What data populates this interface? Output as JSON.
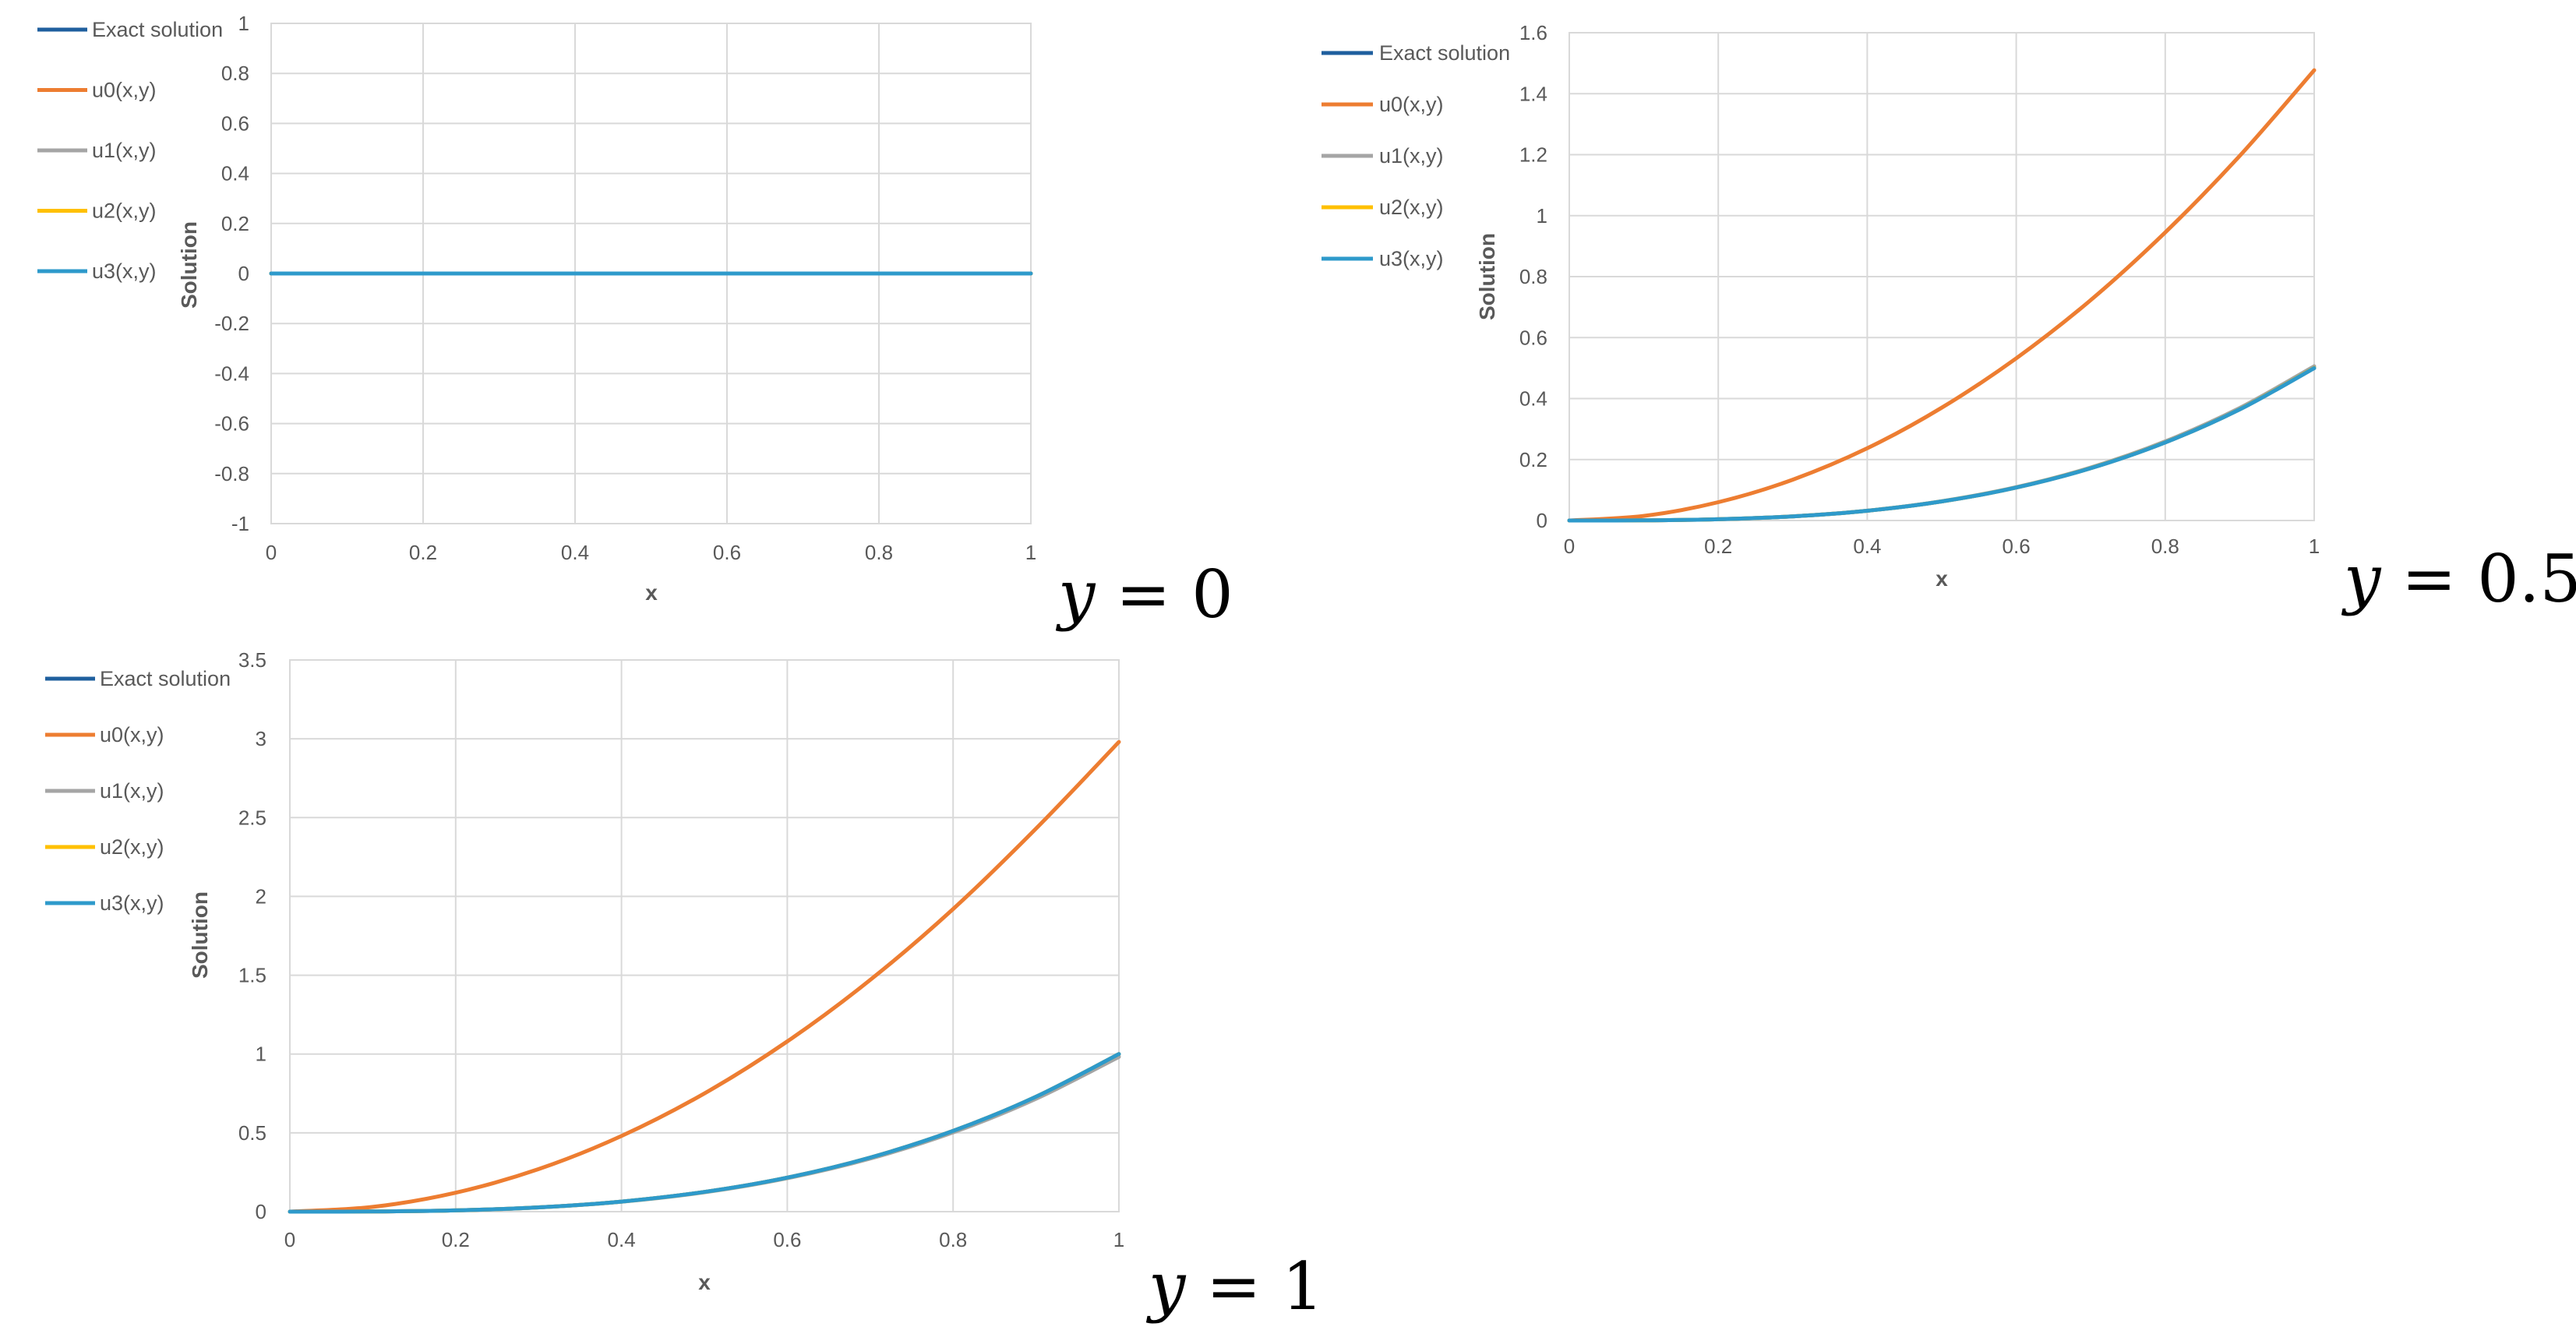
{
  "colors": {
    "exact": "#1F5F9E",
    "u0": "#ED7D31",
    "u1": "#A5A5A5",
    "u2": "#FFC000",
    "u3": "#2E9ACB",
    "grid": "#D9D9D9",
    "axis_text": "#595959"
  },
  "chart_data": [
    {
      "type": "line",
      "panel_label": {
        "var": "y",
        "rest": " = 0"
      },
      "xlabel": "x",
      "ylabel": "Solution",
      "xlim": [
        0,
        1
      ],
      "ylim": [
        -1,
        1
      ],
      "x_ticks": [
        0,
        0.2,
        0.4,
        0.6,
        0.8,
        1
      ],
      "x_tick_labels": [
        "0",
        "0.2",
        "0.4",
        "0.6",
        "0.8",
        "1"
      ],
      "y_ticks": [
        -1,
        -0.8,
        -0.6,
        -0.4,
        -0.2,
        0,
        0.2,
        0.4,
        0.6,
        0.8,
        1
      ],
      "y_tick_labels": [
        "-1",
        "-0.8",
        "-0.6",
        "-0.4",
        "-0.2",
        "0",
        "0.2",
        "0.4",
        "0.6",
        "0.8",
        "1"
      ],
      "grid": true,
      "legend": "left",
      "x": [
        0,
        0.1,
        0.2,
        0.3,
        0.4,
        0.5,
        0.6,
        0.7,
        0.8,
        0.9,
        1
      ],
      "series": [
        {
          "name": "Exact solution",
          "color_key": "exact",
          "values": [
            0,
            0,
            0,
            0,
            0,
            0,
            0,
            0,
            0,
            0,
            0
          ]
        },
        {
          "name": "u0(x,y)",
          "color_key": "u0",
          "values": [
            0,
            0,
            0,
            0,
            0,
            0,
            0,
            0,
            0,
            0,
            0
          ]
        },
        {
          "name": "u1(x,y)",
          "color_key": "u1",
          "values": [
            0,
            0,
            0,
            0,
            0,
            0,
            0,
            0,
            0,
            0,
            0
          ]
        },
        {
          "name": "u2(x,y)",
          "color_key": "u2",
          "values": [
            0,
            0,
            0,
            0,
            0,
            0,
            0,
            0,
            0,
            0,
            0
          ]
        },
        {
          "name": "u3(x,y)",
          "color_key": "u3",
          "values": [
            0,
            0,
            0,
            0,
            0,
            0,
            0,
            0,
            0,
            0,
            0
          ]
        }
      ]
    },
    {
      "type": "line",
      "panel_label": {
        "var": "y",
        "rest": " = 0.5"
      },
      "xlabel": "x",
      "ylabel": "Solution",
      "xlim": [
        0,
        1
      ],
      "ylim": [
        0,
        1.6
      ],
      "x_ticks": [
        0,
        0.2,
        0.4,
        0.6,
        0.8,
        1
      ],
      "x_tick_labels": [
        "0",
        "0.2",
        "0.4",
        "0.6",
        "0.8",
        "1"
      ],
      "y_ticks": [
        0,
        0.2,
        0.4,
        0.6,
        0.8,
        1,
        1.2,
        1.4,
        1.6
      ],
      "y_tick_labels": [
        "0",
        "0.2",
        "0.4",
        "0.6",
        "0.8",
        "1",
        "1.2",
        "1.4",
        "1.6"
      ],
      "grid": true,
      "legend": "left",
      "x": [
        0,
        0.1,
        0.2,
        0.3,
        0.4,
        0.5,
        0.6,
        0.7,
        0.8,
        0.9,
        1
      ],
      "series": [
        {
          "name": "Exact solution",
          "color_key": "exact",
          "values": [
            0,
            0.0005,
            0.004,
            0.0135,
            0.032,
            0.0625,
            0.108,
            0.1715,
            0.256,
            0.3645,
            0.5
          ]
        },
        {
          "name": "u0(x,y)",
          "color_key": "u0",
          "values": [
            0,
            0.015,
            0.06,
            0.134,
            0.237,
            0.37,
            0.532,
            0.723,
            0.945,
            1.196,
            1.477
          ]
        },
        {
          "name": "u1(x,y)",
          "color_key": "u1",
          "values": [
            0,
            0.0005,
            0.004,
            0.0137,
            0.0324,
            0.0633,
            0.1094,
            0.1737,
            0.2593,
            0.3692,
            0.506
          ]
        },
        {
          "name": "u2(x,y)",
          "color_key": "u2",
          "values": [
            0,
            0.0005,
            0.004,
            0.0135,
            0.032,
            0.0626,
            0.1082,
            0.1718,
            0.2564,
            0.3651,
            0.501
          ]
        },
        {
          "name": "u3(x,y)",
          "color_key": "u3",
          "values": [
            0,
            0.0005,
            0.004,
            0.0135,
            0.032,
            0.0625,
            0.108,
            0.1715,
            0.256,
            0.3645,
            0.5
          ]
        }
      ]
    },
    {
      "type": "line",
      "panel_label": {
        "var": "y",
        "rest": " = 1"
      },
      "xlabel": "x",
      "ylabel": "Solution",
      "xlim": [
        0,
        1
      ],
      "ylim": [
        0,
        3.5
      ],
      "x_ticks": [
        0,
        0.2,
        0.4,
        0.6,
        0.8,
        1
      ],
      "x_tick_labels": [
        "0",
        "0.2",
        "0.4",
        "0.6",
        "0.8",
        "1"
      ],
      "y_ticks": [
        0,
        0.5,
        1,
        1.5,
        2,
        2.5,
        3,
        3.5
      ],
      "y_tick_labels": [
        "0",
        "0.5",
        "1",
        "1.5",
        "2",
        "2.5",
        "3",
        "3.5"
      ],
      "grid": true,
      "legend": "left",
      "x": [
        0,
        0.1,
        0.2,
        0.3,
        0.4,
        0.5,
        0.6,
        0.7,
        0.8,
        0.9,
        1
      ],
      "series": [
        {
          "name": "Exact solution",
          "color_key": "exact",
          "values": [
            0,
            0.001,
            0.008,
            0.027,
            0.064,
            0.125,
            0.216,
            0.343,
            0.512,
            0.729,
            1
          ]
        },
        {
          "name": "u0(x,y)",
          "color_key": "u0",
          "values": [
            0,
            0.03,
            0.12,
            0.27,
            0.48,
            0.75,
            1.08,
            1.47,
            1.92,
            2.43,
            2.98
          ]
        },
        {
          "name": "u1(x,y)",
          "color_key": "u1",
          "values": [
            0,
            0.001,
            0.0078,
            0.0265,
            0.0628,
            0.1226,
            0.212,
            0.3368,
            0.503,
            0.7162,
            0.982
          ]
        },
        {
          "name": "u2(x,y)",
          "color_key": "u2",
          "values": [
            0,
            0.001,
            0.008,
            0.027,
            0.064,
            0.125,
            0.216,
            0.343,
            0.512,
            0.729,
            1
          ]
        },
        {
          "name": "u3(x,y)",
          "color_key": "u3",
          "values": [
            0,
            0.001,
            0.008,
            0.027,
            0.064,
            0.125,
            0.216,
            0.343,
            0.512,
            0.729,
            1
          ]
        }
      ]
    }
  ]
}
